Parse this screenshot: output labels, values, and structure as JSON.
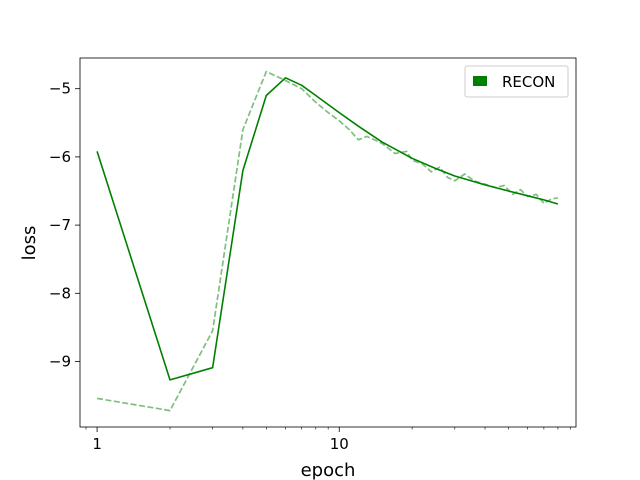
{
  "chart_data": {
    "type": "line",
    "title": "",
    "xlabel": "epoch",
    "ylabel": "loss",
    "xscale": "log",
    "xlim": [
      0.85,
      95
    ],
    "ylim": [
      -9.96,
      -4.55
    ],
    "grid": false,
    "legend_position": "top-right",
    "x_major_ticks": [
      1,
      10
    ],
    "x_major_tick_labels": [
      "1",
      "10"
    ],
    "y_ticks": [
      -9,
      -8,
      -7,
      -6,
      -5
    ],
    "y_tick_labels": [
      "−9",
      "−8",
      "−7",
      "−6",
      "−5"
    ],
    "colors": {
      "series": "#008000"
    },
    "series": [
      {
        "name": "RECON",
        "style": "solid",
        "in_legend": true,
        "x": [
          1,
          2,
          3,
          4,
          5,
          6,
          7,
          8,
          10,
          12,
          15,
          20,
          25,
          30,
          40,
          50,
          60,
          70,
          80
        ],
        "y": [
          -5.92,
          -9.27,
          -9.09,
          -6.2,
          -5.1,
          -4.84,
          -4.95,
          -5.1,
          -5.35,
          -5.55,
          -5.78,
          -6.02,
          -6.17,
          -6.28,
          -6.41,
          -6.5,
          -6.57,
          -6.63,
          -6.69
        ]
      },
      {
        "name": "",
        "style": "dashed",
        "in_legend": false,
        "x": [
          1,
          2,
          3,
          4,
          5,
          6,
          7,
          8,
          9,
          10,
          11,
          12,
          13,
          15,
          17,
          19,
          20,
          22,
          24,
          26,
          28,
          30,
          33,
          36,
          40,
          44,
          48,
          52,
          56,
          60,
          65,
          70,
          75,
          80
        ],
        "y": [
          -9.54,
          -9.72,
          -8.55,
          -5.6,
          -4.75,
          -4.88,
          -5.0,
          -5.2,
          -5.35,
          -5.47,
          -5.6,
          -5.75,
          -5.7,
          -5.8,
          -5.95,
          -5.92,
          -6.05,
          -6.1,
          -6.22,
          -6.15,
          -6.3,
          -6.35,
          -6.25,
          -6.35,
          -6.4,
          -6.45,
          -6.42,
          -6.55,
          -6.48,
          -6.58,
          -6.55,
          -6.68,
          -6.62,
          -6.6
        ]
      }
    ]
  }
}
